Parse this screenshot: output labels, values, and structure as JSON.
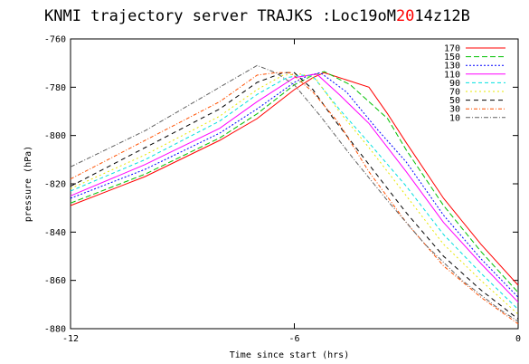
{
  "chart_data": {
    "type": "line",
    "title_parts": [
      {
        "text": "KNMI trajectory server TRAJKS :Loc19oM",
        "color": "#000000"
      },
      {
        "text": "20",
        "color": "#ff0000"
      },
      {
        "text": "14z12B",
        "color": "#000000"
      }
    ],
    "xlabel": "Time since start (hrs)",
    "ylabel": "pressure (hPa)",
    "xlim": [
      -12,
      0
    ],
    "ylim": [
      -880,
      -760
    ],
    "x_ticks": [
      -12,
      -6,
      0
    ],
    "y_ticks": [
      -760,
      -780,
      -800,
      -820,
      -840,
      -860,
      -880
    ],
    "x_tick_labels": [
      "-12",
      "-6",
      "0"
    ],
    "y_tick_labels": [
      "-760",
      "-780",
      "-800",
      "-820",
      "-840",
      "-860",
      "-880"
    ],
    "grid": false,
    "legend_position": "top-right",
    "series": [
      {
        "name": "170",
        "color": "#ff0000",
        "dash": "",
        "points": [
          [
            -12,
            -829
          ],
          [
            -10,
            -817
          ],
          [
            -8,
            -802
          ],
          [
            -7,
            -793
          ],
          [
            -6,
            -781
          ],
          [
            -5.5,
            -776
          ],
          [
            -5.2,
            -774
          ],
          [
            -4,
            -780
          ],
          [
            -3.5,
            -791
          ],
          [
            -3,
            -803
          ],
          [
            -2,
            -826
          ],
          [
            -1,
            -845
          ],
          [
            0,
            -862
          ]
        ]
      },
      {
        "name": "150",
        "color": "#00c000",
        "dash": "6,3",
        "points": [
          [
            -12,
            -828
          ],
          [
            -10,
            -816
          ],
          [
            -8,
            -801
          ],
          [
            -7,
            -791
          ],
          [
            -6,
            -779
          ],
          [
            -5.5,
            -775
          ],
          [
            -5.2,
            -773.5
          ],
          [
            -4.5,
            -779
          ],
          [
            -3.5,
            -793
          ],
          [
            -3,
            -806
          ],
          [
            -2,
            -829
          ],
          [
            -1,
            -848
          ],
          [
            0,
            -865
          ]
        ]
      },
      {
        "name": "130",
        "color": "#0000ff",
        "dash": "2,2",
        "points": [
          [
            -12,
            -826
          ],
          [
            -10,
            -814
          ],
          [
            -8,
            -799
          ],
          [
            -7,
            -789
          ],
          [
            -6,
            -778
          ],
          [
            -5.6,
            -775
          ],
          [
            -5.3,
            -774
          ],
          [
            -4.6,
            -782
          ],
          [
            -3.8,
            -797
          ],
          [
            -3,
            -811
          ],
          [
            -2,
            -833
          ],
          [
            -1,
            -851
          ],
          [
            0,
            -867
          ]
        ]
      },
      {
        "name": "110",
        "color": "#ff00ff",
        "dash": "",
        "points": [
          [
            -12,
            -825
          ],
          [
            -10,
            -812
          ],
          [
            -8,
            -797
          ],
          [
            -7,
            -786
          ],
          [
            -6,
            -776
          ],
          [
            -5.4,
            -774.5
          ],
          [
            -4.8,
            -783
          ],
          [
            -4,
            -795
          ],
          [
            -3,
            -815
          ],
          [
            -2,
            -836
          ],
          [
            -1,
            -853
          ],
          [
            0,
            -869
          ]
        ]
      },
      {
        "name": "90",
        "color": "#00e0e0",
        "dash": "4,3",
        "points": [
          [
            -12,
            -823
          ],
          [
            -10,
            -810
          ],
          [
            -8,
            -794
          ],
          [
            -7,
            -783
          ],
          [
            -6.2,
            -776
          ],
          [
            -5.8,
            -775
          ],
          [
            -5.5,
            -775.5
          ],
          [
            -4.8,
            -789
          ],
          [
            -4,
            -803
          ],
          [
            -3,
            -821
          ],
          [
            -2,
            -841
          ],
          [
            -1,
            -857
          ],
          [
            0,
            -872
          ]
        ]
      },
      {
        "name": "70",
        "color": "#e8e800",
        "dash": "2,3",
        "points": [
          [
            -12,
            -822
          ],
          [
            -10,
            -808
          ],
          [
            -8,
            -792
          ],
          [
            -7,
            -781
          ],
          [
            -6.3,
            -775
          ],
          [
            -5.8,
            -774.5
          ],
          [
            -5.4,
            -777
          ],
          [
            -4.8,
            -790
          ],
          [
            -4,
            -805
          ],
          [
            -3,
            -825
          ],
          [
            -2,
            -845
          ],
          [
            -1,
            -860
          ],
          [
            0,
            -874
          ]
        ]
      },
      {
        "name": "50",
        "color": "#000000",
        "dash": "5,4",
        "points": [
          [
            -12,
            -821
          ],
          [
            -10,
            -805
          ],
          [
            -8,
            -789
          ],
          [
            -7,
            -778
          ],
          [
            -6.3,
            -774
          ],
          [
            -6,
            -774
          ],
          [
            -5.5,
            -781
          ],
          [
            -5,
            -792
          ],
          [
            -4,
            -812
          ],
          [
            -3,
            -832
          ],
          [
            -2,
            -850
          ],
          [
            -1,
            -864
          ],
          [
            0,
            -876
          ]
        ]
      },
      {
        "name": "30",
        "color": "#ff5000",
        "dash": "4,2,1,2",
        "points": [
          [
            -12,
            -818
          ],
          [
            -10,
            -802
          ],
          [
            -8,
            -786
          ],
          [
            -7,
            -775
          ],
          [
            -6.5,
            -774
          ],
          [
            -6.1,
            -774
          ],
          [
            -5.5,
            -782
          ],
          [
            -4.8,
            -795
          ],
          [
            -4,
            -815
          ],
          [
            -3,
            -836
          ],
          [
            -2,
            -854
          ],
          [
            -1,
            -867
          ],
          [
            0,
            -878
          ]
        ]
      },
      {
        "name": "10",
        "color": "#606060",
        "dash": "5,2,1,2",
        "points": [
          [
            -12,
            -813
          ],
          [
            -10,
            -798
          ],
          [
            -8,
            -780
          ],
          [
            -7,
            -771
          ],
          [
            -6.5,
            -774
          ],
          [
            -6,
            -779
          ],
          [
            -5.3,
            -792
          ],
          [
            -4.5,
            -808
          ],
          [
            -3.5,
            -827
          ],
          [
            -2.5,
            -845
          ],
          [
            -1.5,
            -860
          ],
          [
            -0.5,
            -872
          ],
          [
            0,
            -877
          ]
        ]
      }
    ]
  }
}
